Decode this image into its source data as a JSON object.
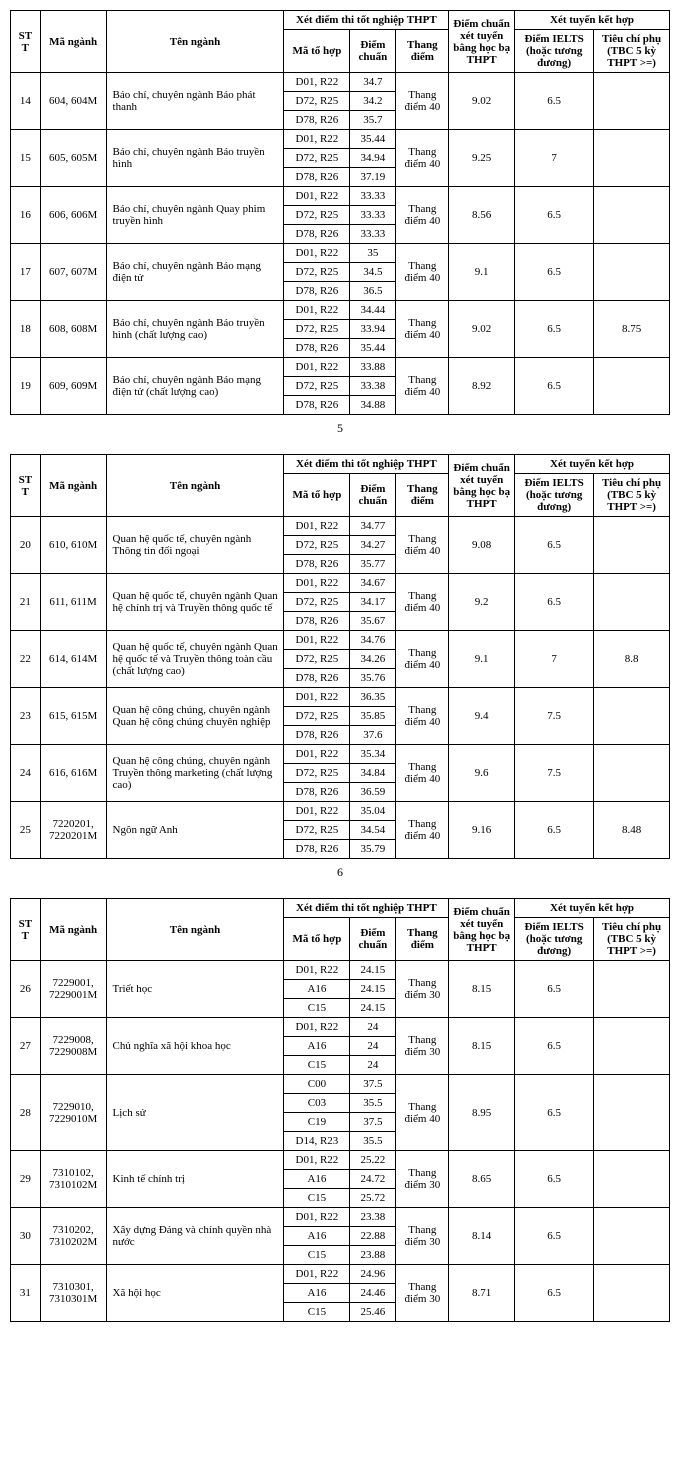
{
  "headers": {
    "stt": "STT",
    "maNganh": "Mã ngành",
    "tenNganh": "Tên ngành",
    "xetDiemThi": "Xét điểm thi tốt nghiệp THPT",
    "maToHop": "Mã tổ hợp",
    "diemChuan": "Điểm chuẩn",
    "thangDiem": "Thang điểm",
    "diemChuanHocBa": "Điểm chuẩn xét tuyển bằng học bạ THPT",
    "xetTuyenKetHop": "Xét tuyển kết hợp",
    "diemIelts": "Điểm IELTS (hoặc tương đương)",
    "tieuChiPhu": "Tiêu chí phụ (TBC 5 kỳ THPT >=)"
  },
  "pages": [
    {
      "pageNumber": "5",
      "rows": [
        {
          "stt": "14",
          "ma": "604, 604M",
          "ten": "Báo chí, chuyên ngành Báo phát thanh",
          "thang": "Thang điểm 40",
          "hocba": "9.02",
          "ielts": "6.5",
          "tcphu": "",
          "subs": [
            [
              "D01, R22",
              "34.7"
            ],
            [
              "D72, R25",
              "34.2"
            ],
            [
              "D78, R26",
              "35.7"
            ]
          ]
        },
        {
          "stt": "15",
          "ma": "605, 605M",
          "ten": "Báo chí, chuyên ngành Báo truyền hình",
          "thang": "Thang điểm 40",
          "hocba": "9.25",
          "ielts": "7",
          "tcphu": "",
          "subs": [
            [
              "D01, R22",
              "35.44"
            ],
            [
              "D72, R25",
              "34.94"
            ],
            [
              "D78, R26",
              "37.19"
            ]
          ]
        },
        {
          "stt": "16",
          "ma": "606, 606M",
          "ten": "Báo chí, chuyên ngành Quay phim truyền hình",
          "thang": "Thang điểm 40",
          "hocba": "8.56",
          "ielts": "6.5",
          "tcphu": "",
          "subs": [
            [
              "D01, R22",
              "33.33"
            ],
            [
              "D72, R25",
              "33.33"
            ],
            [
              "D78, R26",
              "33.33"
            ]
          ]
        },
        {
          "stt": "17",
          "ma": "607, 607M",
          "ten": "Báo chí, chuyên ngành Báo mạng điện tử",
          "thang": "Thang điểm 40",
          "hocba": "9.1",
          "ielts": "6.5",
          "tcphu": "",
          "subs": [
            [
              "D01, R22",
              "35"
            ],
            [
              "D72, R25",
              "34.5"
            ],
            [
              "D78, R26",
              "36.5"
            ]
          ]
        },
        {
          "stt": "18",
          "ma": "608, 608M",
          "ten": "Báo chí, chuyên ngành Báo truyền hình (chất lượng cao)",
          "thang": "Thang điểm 40",
          "hocba": "9.02",
          "ielts": "6.5",
          "tcphu": "8.75",
          "subs": [
            [
              "D01, R22",
              "34.44"
            ],
            [
              "D72, R25",
              "33.94"
            ],
            [
              "D78, R26",
              "35.44"
            ]
          ]
        },
        {
          "stt": "19",
          "ma": "609, 609M",
          "ten": "Báo chí, chuyên ngành Báo mạng điện tử (chất lượng cao)",
          "thang": "Thang điểm 40",
          "hocba": "8.92",
          "ielts": "6.5",
          "tcphu": "",
          "subs": [
            [
              "D01, R22",
              "33.88"
            ],
            [
              "D72, R25",
              "33.38"
            ],
            [
              "D78, R26",
              "34.88"
            ]
          ]
        }
      ]
    },
    {
      "pageNumber": "6",
      "rows": [
        {
          "stt": "20",
          "ma": "610, 610M",
          "ten": "Quan hệ quốc tế, chuyên ngành Thông tin đối ngoại",
          "thang": "Thang điểm 40",
          "hocba": "9.08",
          "ielts": "6.5",
          "tcphu": "",
          "subs": [
            [
              "D01, R22",
              "34.77"
            ],
            [
              "D72, R25",
              "34.27"
            ],
            [
              "D78, R26",
              "35.77"
            ]
          ]
        },
        {
          "stt": "21",
          "ma": "611, 611M",
          "ten": "Quan hệ quốc tế, chuyên ngành Quan hệ chính trị và Truyền thông quốc tế",
          "thang": "Thang điểm 40",
          "hocba": "9.2",
          "ielts": "6.5",
          "tcphu": "",
          "subs": [
            [
              "D01, R22",
              "34.67"
            ],
            [
              "D72, R25",
              "34.17"
            ],
            [
              "D78, R26",
              "35.67"
            ]
          ]
        },
        {
          "stt": "22",
          "ma": "614, 614M",
          "ten": "Quan hệ quốc tế, chuyên ngành Quan hệ quốc tế và Truyền thông toàn cầu (chất lượng cao)",
          "thang": "Thang điểm 40",
          "hocba": "9.1",
          "ielts": "7",
          "tcphu": "8.8",
          "subs": [
            [
              "D01, R22",
              "34.76"
            ],
            [
              "D72, R25",
              "34.26"
            ],
            [
              "D78, R26",
              "35.76"
            ]
          ]
        },
        {
          "stt": "23",
          "ma": "615, 615M",
          "ten": "Quan hệ công chúng, chuyên ngành Quan hệ công chúng chuyên nghiệp",
          "thang": "Thang điểm 40",
          "hocba": "9.4",
          "ielts": "7.5",
          "tcphu": "",
          "subs": [
            [
              "D01, R22",
              "36.35"
            ],
            [
              "D72, R25",
              "35.85"
            ],
            [
              "D78, R26",
              "37.6"
            ]
          ]
        },
        {
          "stt": "24",
          "ma": "616, 616M",
          "ten": "Quan hệ công chúng, chuyên ngành Truyền thông marketing (chất lượng cao)",
          "thang": "Thang điểm 40",
          "hocba": "9.6",
          "ielts": "7.5",
          "tcphu": "",
          "subs": [
            [
              "D01, R22",
              "35.34"
            ],
            [
              "D72, R25",
              "34.84"
            ],
            [
              "D78, R26",
              "36.59"
            ]
          ]
        },
        {
          "stt": "25",
          "ma": "7220201, 7220201M",
          "ten": "Ngôn ngữ Anh",
          "thang": "Thang điểm 40",
          "hocba": "9.16",
          "ielts": "6.5",
          "tcphu": "8.48",
          "subs": [
            [
              "D01, R22",
              "35.04"
            ],
            [
              "D72, R25",
              "34.54"
            ],
            [
              "D78, R26",
              "35.79"
            ]
          ]
        }
      ]
    },
    {
      "pageNumber": "",
      "rows": [
        {
          "stt": "26",
          "ma": "7229001, 7229001M",
          "ten": "Triết học",
          "thang": "Thang điểm 30",
          "hocba": "8.15",
          "ielts": "6.5",
          "tcphu": "",
          "subs": [
            [
              "D01, R22",
              "24.15"
            ],
            [
              "A16",
              "24.15"
            ],
            [
              "C15",
              "24.15"
            ]
          ]
        },
        {
          "stt": "27",
          "ma": "7229008, 7229008M",
          "ten": "Chủ nghĩa xã hội khoa học",
          "thang": "Thang điểm 30",
          "hocba": "8.15",
          "ielts": "6.5",
          "tcphu": "",
          "subs": [
            [
              "D01, R22",
              "24"
            ],
            [
              "A16",
              "24"
            ],
            [
              "C15",
              "24"
            ]
          ]
        },
        {
          "stt": "28",
          "ma": "7229010, 7229010M",
          "ten": "Lịch sử",
          "thang": "Thang điểm 40",
          "hocba": "8.95",
          "ielts": "6.5",
          "tcphu": "",
          "subs": [
            [
              "C00",
              "37.5"
            ],
            [
              "C03",
              "35.5"
            ],
            [
              "C19",
              "37.5"
            ],
            [
              "D14, R23",
              "35.5"
            ]
          ]
        },
        {
          "stt": "29",
          "ma": "7310102, 7310102M",
          "ten": "Kinh tế chính trị",
          "thang": "Thang điểm 30",
          "hocba": "8.65",
          "ielts": "6.5",
          "tcphu": "",
          "subs": [
            [
              "D01, R22",
              "25.22"
            ],
            [
              "A16",
              "24.72"
            ],
            [
              "C15",
              "25.72"
            ]
          ]
        },
        {
          "stt": "30",
          "ma": "7310202, 7310202M",
          "ten": "Xây dựng Đảng và chính quyền nhà nước",
          "thang": "Thang điểm 30",
          "hocba": "8.14",
          "ielts": "6.5",
          "tcphu": "",
          "subs": [
            [
              "D01, R22",
              "23.38"
            ],
            [
              "A16",
              "22.88"
            ],
            [
              "C15",
              "23.88"
            ]
          ]
        },
        {
          "stt": "31",
          "ma": "7310301, 7310301M",
          "ten": "Xã hội học",
          "thang": "Thang điểm 30",
          "hocba": "8.71",
          "ielts": "6.5",
          "tcphu": "",
          "subs": [
            [
              "D01, R22",
              "24.96"
            ],
            [
              "A16",
              "24.46"
            ],
            [
              "C15",
              "25.46"
            ]
          ]
        }
      ]
    }
  ]
}
